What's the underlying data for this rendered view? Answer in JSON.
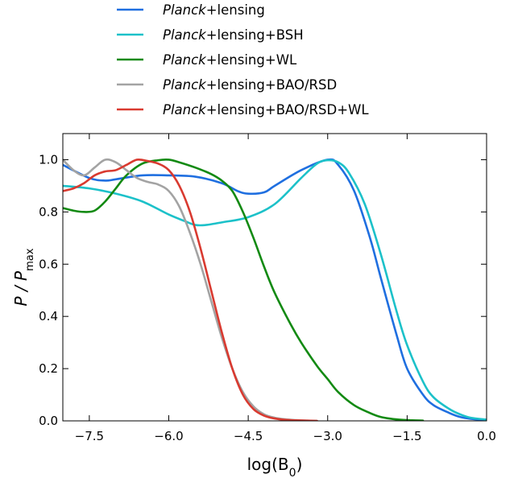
{
  "chart_data": {
    "type": "line",
    "xlabel_base": "log(B",
    "xlabel_sub": "0",
    "xlabel_close": ")",
    "ylabel_main": "P / P",
    "ylabel_sub": "max",
    "xlim": [
      -8.0,
      0.0
    ],
    "ylim": [
      0.0,
      1.1
    ],
    "grid": false,
    "legend_position": "top",
    "xticks": [
      -7.5,
      -6.0,
      -4.5,
      -3.0,
      -1.5,
      0.0
    ],
    "xtick_labels": [
      "−7.5",
      "−6.0",
      "−4.5",
      "−3.0",
      "−1.5",
      "0.0"
    ],
    "yticks": [
      0.0,
      0.2,
      0.4,
      0.6,
      0.8,
      1.0
    ],
    "ytick_labels": [
      "0.0",
      "0.2",
      "0.4",
      "0.6",
      "0.8",
      "1.0"
    ],
    "series": [
      {
        "name_italic": "Planck",
        "name_rest": "+lensing",
        "color": "#1f6fe0",
        "x": [
          -8.0,
          -7.5,
          -7.2,
          -7.0,
          -6.5,
          -6.0,
          -5.5,
          -5.0,
          -4.7,
          -4.5,
          -4.2,
          -4.0,
          -3.5,
          -3.0,
          -2.8,
          -2.5,
          -2.2,
          -2.0,
          -1.7,
          -1.5,
          -1.2,
          -1.0,
          -0.7,
          -0.5,
          -0.3,
          0.0
        ],
        "y": [
          0.98,
          0.93,
          0.92,
          0.925,
          0.94,
          0.94,
          0.935,
          0.91,
          0.88,
          0.87,
          0.875,
          0.9,
          0.96,
          1.0,
          0.98,
          0.88,
          0.7,
          0.55,
          0.33,
          0.2,
          0.1,
          0.06,
          0.03,
          0.015,
          0.008,
          0.003
        ]
      },
      {
        "name_italic": "Planck",
        "name_rest": "+lensing+BSH",
        "color": "#1cc1c9",
        "x": [
          -8.0,
          -7.5,
          -7.0,
          -6.5,
          -6.0,
          -5.7,
          -5.5,
          -5.3,
          -5.0,
          -4.5,
          -4.0,
          -3.5,
          -3.2,
          -3.0,
          -2.8,
          -2.6,
          -2.3,
          -2.0,
          -1.7,
          -1.5,
          -1.2,
          -1.0,
          -0.7,
          -0.5,
          -0.3,
          0.0
        ],
        "y": [
          0.9,
          0.89,
          0.87,
          0.84,
          0.79,
          0.765,
          0.75,
          0.75,
          0.76,
          0.78,
          0.83,
          0.93,
          0.985,
          0.998,
          0.99,
          0.95,
          0.83,
          0.64,
          0.42,
          0.29,
          0.15,
          0.09,
          0.045,
          0.025,
          0.012,
          0.005
        ]
      },
      {
        "name_italic": "Planck",
        "name_rest": "+lensing+WL",
        "color": "#138a13",
        "x": [
          -8.0,
          -7.8,
          -7.6,
          -7.4,
          -7.2,
          -7.0,
          -6.8,
          -6.5,
          -6.2,
          -6.0,
          -5.8,
          -5.5,
          -5.2,
          -5.0,
          -4.8,
          -4.6,
          -4.4,
          -4.2,
          -4.0,
          -3.7,
          -3.5,
          -3.2,
          -3.0,
          -2.8,
          -2.5,
          -2.2,
          -2.0,
          -1.8,
          -1.6,
          -1.4,
          -1.2
        ],
        "y": [
          0.815,
          0.805,
          0.8,
          0.805,
          0.84,
          0.89,
          0.94,
          0.985,
          0.998,
          1.0,
          0.99,
          0.97,
          0.945,
          0.92,
          0.88,
          0.8,
          0.7,
          0.59,
          0.49,
          0.37,
          0.3,
          0.21,
          0.16,
          0.11,
          0.06,
          0.03,
          0.015,
          0.008,
          0.004,
          0.002,
          0.001
        ]
      },
      {
        "name_italic": "Planck",
        "name_rest": "+lensing+BAO/RSD",
        "color": "#a3a3a3",
        "x": [
          -8.0,
          -7.8,
          -7.6,
          -7.4,
          -7.2,
          -7.0,
          -6.8,
          -6.6,
          -6.4,
          -6.2,
          -6.0,
          -5.8,
          -5.6,
          -5.4,
          -5.2,
          -5.0,
          -4.8,
          -4.6,
          -4.4,
          -4.2,
          -4.0,
          -3.8,
          -3.6,
          -3.4,
          -3.2
        ],
        "y": [
          1.0,
          0.96,
          0.94,
          0.97,
          1.0,
          0.99,
          0.96,
          0.93,
          0.915,
          0.905,
          0.88,
          0.82,
          0.72,
          0.6,
          0.46,
          0.32,
          0.2,
          0.11,
          0.055,
          0.025,
          0.012,
          0.006,
          0.003,
          0.001,
          0.0
        ]
      },
      {
        "name_italic": "Planck",
        "name_rest": "+lensing+BAO/RSD+WL",
        "color": "#d93a30",
        "x": [
          -8.0,
          -7.8,
          -7.6,
          -7.4,
          -7.2,
          -7.0,
          -6.8,
          -6.6,
          -6.4,
          -6.2,
          -6.0,
          -5.8,
          -5.6,
          -5.4,
          -5.2,
          -5.0,
          -4.8,
          -4.6,
          -4.4,
          -4.2,
          -4.0,
          -3.8,
          -3.6,
          -3.4,
          -3.2
        ],
        "y": [
          0.88,
          0.89,
          0.91,
          0.94,
          0.955,
          0.96,
          0.98,
          1.0,
          0.995,
          0.985,
          0.96,
          0.9,
          0.8,
          0.66,
          0.5,
          0.34,
          0.2,
          0.1,
          0.045,
          0.02,
          0.009,
          0.004,
          0.002,
          0.001,
          0.0
        ]
      }
    ]
  }
}
